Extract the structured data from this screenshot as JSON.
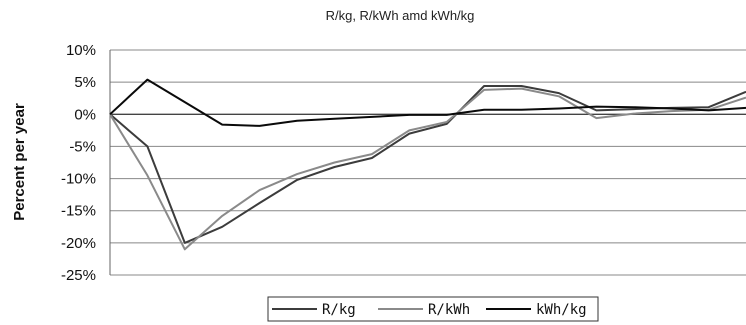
{
  "chart_data": {
    "type": "line",
    "title": "R/kg, R/kWh amd kWh/kg",
    "xlabel": "",
    "ylabel": "Percent per year",
    "ylim": [
      -25,
      10
    ],
    "yticks": [
      "10%",
      "5%",
      "0%",
      "-5%",
      "-10%",
      "-15%",
      "-20%",
      "-25%"
    ],
    "ytick_values": [
      10,
      5,
      0,
      -5,
      -10,
      -15,
      -20,
      -25
    ],
    "grid": "horizontal",
    "legend": "bottom",
    "x": [
      0,
      1,
      2,
      3,
      4,
      5,
      6,
      7,
      8,
      9,
      10,
      11,
      12,
      13,
      14,
      15,
      16,
      17
    ],
    "series": [
      {
        "name": "R/kg",
        "color": "#3c3c3c",
        "values": [
          0,
          -5,
          -20,
          -17.5,
          -13.8,
          -10.2,
          -8.2,
          -6.8,
          -3,
          -1.5,
          4.4,
          4.4,
          3.3,
          0.6,
          0.8,
          1,
          1.1,
          3.5
        ]
      },
      {
        "name": "R/kWh",
        "color": "#8a8a8a",
        "values": [
          0,
          -9.5,
          -21,
          -15.8,
          -11.8,
          -9.3,
          -7.5,
          -6.2,
          -2.5,
          -1.2,
          3.8,
          4,
          2.8,
          -0.6,
          0.1,
          0.5,
          0.7,
          2.6
        ]
      },
      {
        "name": "kWh/kg",
        "color": "#0a0a0a",
        "values": [
          0,
          5.4,
          1.9,
          -1.6,
          -1.8,
          -1,
          -0.7,
          -0.4,
          -0.1,
          -0.1,
          0.7,
          0.7,
          0.9,
          1.2,
          1.1,
          0.9,
          0.6,
          1
        ]
      }
    ]
  }
}
